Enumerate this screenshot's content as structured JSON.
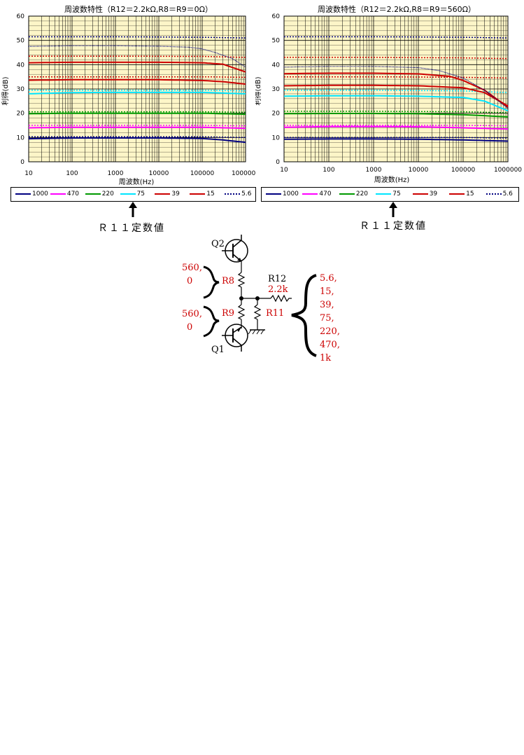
{
  "colors": {
    "plot_bg": "#fdf6c8",
    "grid": "#000000",
    "series": [
      "#000080",
      "#ff00ff",
      "#009900",
      "#00e5ff",
      "#cc0000",
      "#cc0000",
      "#000080"
    ],
    "schematic_red": "#cc0000"
  },
  "chart_data": [
    {
      "type": "line",
      "title": "周波数特性（R12＝2.2kΩ,R8＝R9＝0Ω）",
      "xlabel": "周波数(Hz)",
      "ylabel": "利得(dB)",
      "x_scale": "log",
      "xlim": [
        10,
        1000000
      ],
      "ylim": [
        0,
        60
      ],
      "x_ticks": [
        "10",
        "100",
        "1000",
        "10000",
        "100000",
        "1000000"
      ],
      "y_ticks": [
        "0",
        "10",
        "20",
        "30",
        "40",
        "50",
        "60"
      ],
      "grid": true,
      "legend": "bottom",
      "series": [
        {
          "name": "1000",
          "style": "solid",
          "x": [
            10,
            100,
            1000,
            10000,
            100000,
            300000,
            1000000
          ],
          "values": [
            9.5,
            9.8,
            9.8,
            9.8,
            9.6,
            9.0,
            8.0
          ]
        },
        {
          "name": "1000",
          "style": "dotted",
          "x": [
            10,
            1000,
            100000,
            1000000
          ],
          "values": [
            10.3,
            10.3,
            10.3,
            10.0
          ]
        },
        {
          "name": "470",
          "style": "solid",
          "x": [
            10,
            100,
            1000,
            10000,
            100000,
            1000000
          ],
          "values": [
            14.0,
            14.2,
            14.2,
            14.2,
            14.2,
            13.8
          ]
        },
        {
          "name": "470",
          "style": "dotted",
          "x": [
            10,
            1000,
            100000,
            1000000
          ],
          "values": [
            15.0,
            15.0,
            15.0,
            14.8
          ]
        },
        {
          "name": "220",
          "style": "solid",
          "x": [
            10,
            100,
            1000,
            10000,
            100000,
            1000000
          ],
          "values": [
            19.8,
            20.0,
            20.0,
            20.0,
            20.0,
            19.6
          ]
        },
        {
          "name": "220",
          "style": "dotted",
          "x": [
            10,
            1000,
            100000,
            1000000
          ],
          "values": [
            20.6,
            20.6,
            20.6,
            20.4
          ]
        },
        {
          "name": "75",
          "style": "solid",
          "x": [
            10,
            100,
            1000,
            10000,
            100000,
            1000000
          ],
          "values": [
            28.0,
            28.5,
            28.6,
            28.6,
            28.6,
            28.0
          ]
        },
        {
          "name": "75",
          "style": "dotted",
          "x": [
            10,
            1000,
            100000,
            1000000
          ],
          "values": [
            29.5,
            29.5,
            29.5,
            29.2
          ]
        },
        {
          "name": "39",
          "style": "solid",
          "x": [
            10,
            100,
            1000,
            10000,
            100000,
            300000,
            1000000
          ],
          "values": [
            33.6,
            33.8,
            33.8,
            33.8,
            33.5,
            33.0,
            32.0
          ]
        },
        {
          "name": "39",
          "style": "dotted",
          "x": [
            10,
            1000,
            100000,
            1000000
          ],
          "values": [
            35.0,
            35.0,
            35.0,
            34.8
          ]
        },
        {
          "name": "15",
          "style": "solid",
          "x": [
            10,
            100,
            1000,
            10000,
            100000,
            300000,
            1000000
          ],
          "values": [
            40.8,
            41.0,
            41.0,
            41.0,
            40.8,
            40.2,
            37.0
          ]
        },
        {
          "name": "15",
          "style": "dotted",
          "x": [
            10,
            1000,
            100000,
            1000000
          ],
          "values": [
            43.5,
            43.5,
            43.4,
            43.0
          ]
        },
        {
          "name": "5.6",
          "style": "solid",
          "x": [
            10,
            100,
            1000,
            10000,
            50000,
            100000,
            200000,
            500000,
            1000000
          ],
          "values": [
            47.5,
            47.8,
            47.8,
            47.6,
            47.2,
            46.5,
            45.0,
            42.5,
            39.0
          ]
        },
        {
          "name": "5.6",
          "style": "dotted",
          "x": [
            10,
            1000,
            100000,
            1000000
          ],
          "values": [
            51.5,
            51.5,
            51.3,
            51.0
          ]
        }
      ]
    },
    {
      "type": "line",
      "title": "周波数特性（R12＝2.2kΩ,R8＝R9＝560Ω）",
      "xlabel": "周波数(Hz)",
      "ylabel": "利得(dB)",
      "x_scale": "log",
      "xlim": [
        10,
        1000000
      ],
      "ylim": [
        0,
        60
      ],
      "x_ticks": [
        "10",
        "100",
        "1000",
        "10000",
        "100000",
        "1000000"
      ],
      "y_ticks": [
        "0",
        "10",
        "20",
        "30",
        "40",
        "50",
        "60"
      ],
      "grid": true,
      "legend": "bottom",
      "series": [
        {
          "name": "1000",
          "style": "solid",
          "x": [
            10,
            100,
            1000,
            10000,
            100000,
            1000000
          ],
          "values": [
            9.3,
            9.4,
            9.4,
            9.3,
            9.0,
            8.5
          ]
        },
        {
          "name": "1000",
          "style": "dotted",
          "x": [
            10,
            1000,
            100000,
            1000000
          ],
          "values": [
            10.0,
            10.0,
            10.0,
            9.8
          ]
        },
        {
          "name": "470",
          "style": "solid",
          "x": [
            10,
            100,
            1000,
            10000,
            100000,
            1000000
          ],
          "values": [
            14.2,
            14.5,
            14.5,
            14.4,
            14.0,
            13.5
          ]
        },
        {
          "name": "470",
          "style": "dotted",
          "x": [
            10,
            1000,
            100000,
            1000000
          ],
          "values": [
            15.0,
            15.0,
            15.0,
            14.8
          ]
        },
        {
          "name": "220",
          "style": "solid",
          "x": [
            10,
            100,
            1000,
            10000,
            100000,
            1000000
          ],
          "values": [
            19.8,
            19.9,
            19.9,
            19.8,
            19.4,
            18.5
          ]
        },
        {
          "name": "220",
          "style": "dotted",
          "x": [
            10,
            1000,
            100000,
            1000000
          ],
          "values": [
            20.8,
            20.8,
            20.6,
            20.2
          ]
        },
        {
          "name": "75",
          "style": "solid",
          "x": [
            10,
            100,
            1000,
            10000,
            100000,
            300000,
            1000000
          ],
          "values": [
            27.0,
            27.2,
            27.2,
            27.0,
            26.5,
            25.0,
            21.0
          ]
        },
        {
          "name": "75",
          "style": "dotted",
          "x": [
            10,
            1000,
            100000,
            1000000
          ],
          "values": [
            29.5,
            29.5,
            29.2,
            28.5
          ]
        },
        {
          "name": "39",
          "style": "solid",
          "x": [
            10,
            100,
            1000,
            10000,
            100000,
            300000,
            1000000
          ],
          "values": [
            31.3,
            31.5,
            31.5,
            31.3,
            30.5,
            28.5,
            23.0
          ]
        },
        {
          "name": "39",
          "style": "dotted",
          "x": [
            10,
            1000,
            100000,
            1000000
          ],
          "values": [
            35.0,
            35.0,
            34.8,
            34.5
          ]
        },
        {
          "name": "15",
          "style": "solid",
          "x": [
            10,
            100,
            1000,
            10000,
            50000,
            100000,
            300000,
            1000000
          ],
          "values": [
            36.3,
            36.5,
            36.5,
            36.2,
            35.2,
            33.5,
            29.5,
            22.5
          ]
        },
        {
          "name": "15",
          "style": "dotted",
          "x": [
            10,
            1000,
            100000,
            1000000
          ],
          "values": [
            43.0,
            43.0,
            42.8,
            42.5
          ]
        },
        {
          "name": "5.6",
          "style": "solid",
          "x": [
            10,
            100,
            1000,
            10000,
            30000,
            100000,
            300000,
            1000000
          ],
          "values": [
            39.0,
            39.3,
            39.3,
            38.8,
            37.5,
            34.5,
            29.5,
            22.0
          ]
        },
        {
          "name": "5.6",
          "style": "dotted",
          "x": [
            10,
            1000,
            100000,
            1000000
          ],
          "values": [
            51.5,
            51.5,
            51.3,
            51.0
          ]
        }
      ]
    }
  ],
  "legend_labels": [
    "1000",
    "470",
    "220",
    "75",
    "39",
    "15",
    "5.6"
  ],
  "captions": {
    "left": "Ｒ１１定数値",
    "right": "Ｒ１１定数値"
  },
  "schematic": {
    "q2": "Q2",
    "q1": "Q1",
    "r8": "R8",
    "r9": "R9",
    "r11": "R11",
    "r12": "R12",
    "r12_value": "2.2k",
    "r8_values": [
      "560,",
      "0"
    ],
    "r9_values": [
      "560,",
      "0"
    ],
    "r11_values": [
      "5.6,",
      "15,",
      "39,",
      "75,",
      "220,",
      "470,",
      "1k"
    ]
  }
}
